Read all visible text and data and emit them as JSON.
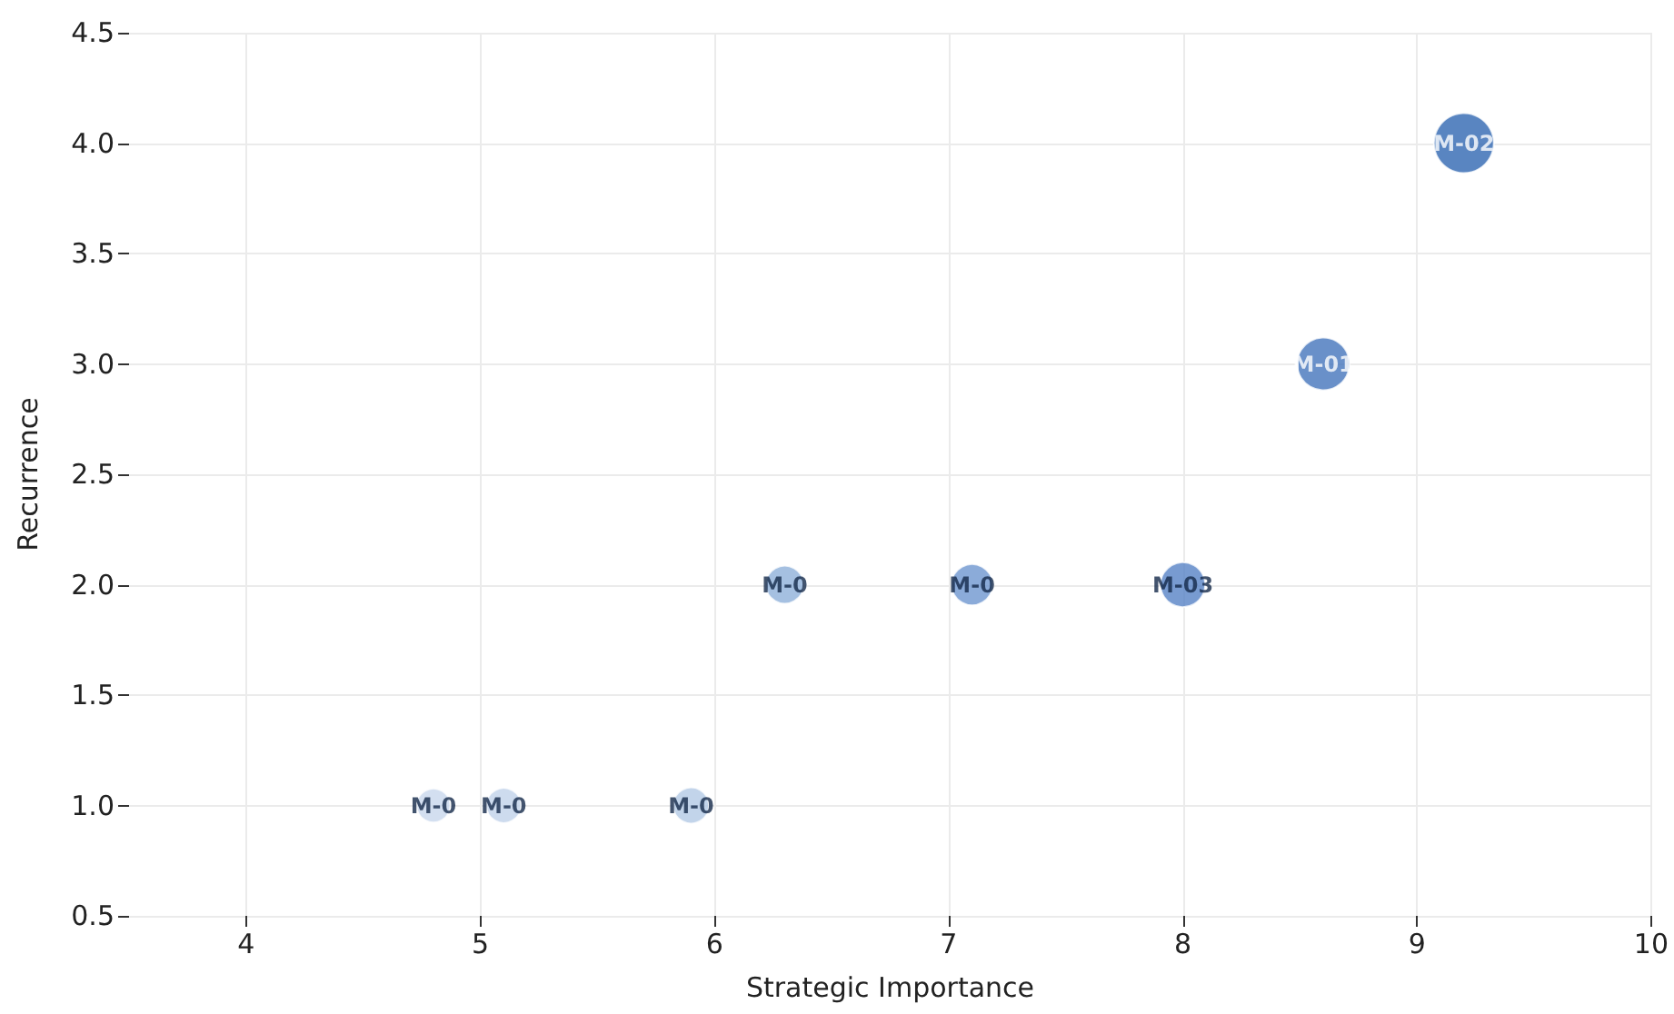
{
  "chart_data": {
    "type": "bubble",
    "xlabel": "Strategic Importance",
    "ylabel": "Recurrence",
    "x": [
      4.8,
      5.1,
      5.9,
      6.3,
      7.1,
      8.0,
      8.6,
      9.2
    ],
    "values": [
      1,
      1,
      1,
      2,
      2,
      2,
      3,
      4
    ],
    "sizes": [
      0.32,
      0.34,
      0.36,
      0.4,
      0.47,
      0.56,
      0.77,
      1
    ],
    "colors": [
      "#c8d7ec",
      "#c0d2ea",
      "#b3c9e5",
      "#8fb0da",
      "#6e96d0",
      "#5682c6",
      "#4474bb",
      "#2f67b1"
    ],
    "value_labels": [
      "M-0",
      "M-0",
      "M-0",
      "M-0",
      "M-0",
      "M-03",
      "M-01",
      "M-02"
    ],
    "xlim": [
      3.5,
      10
    ],
    "xticks": [
      4,
      5,
      6,
      7,
      8,
      9,
      10
    ],
    "ylim": [
      0.5,
      4.5
    ],
    "yticks": [
      0.5,
      {
        "value": 1,
        "label": "1.0"
      },
      1.5,
      {
        "value": 2,
        "label": "2.0"
      },
      2.5,
      {
        "value": 3,
        "label": "3.0"
      },
      3.5,
      {
        "value": 4,
        "label": "4.0"
      },
      4.5
    ],
    "grid": true
  }
}
